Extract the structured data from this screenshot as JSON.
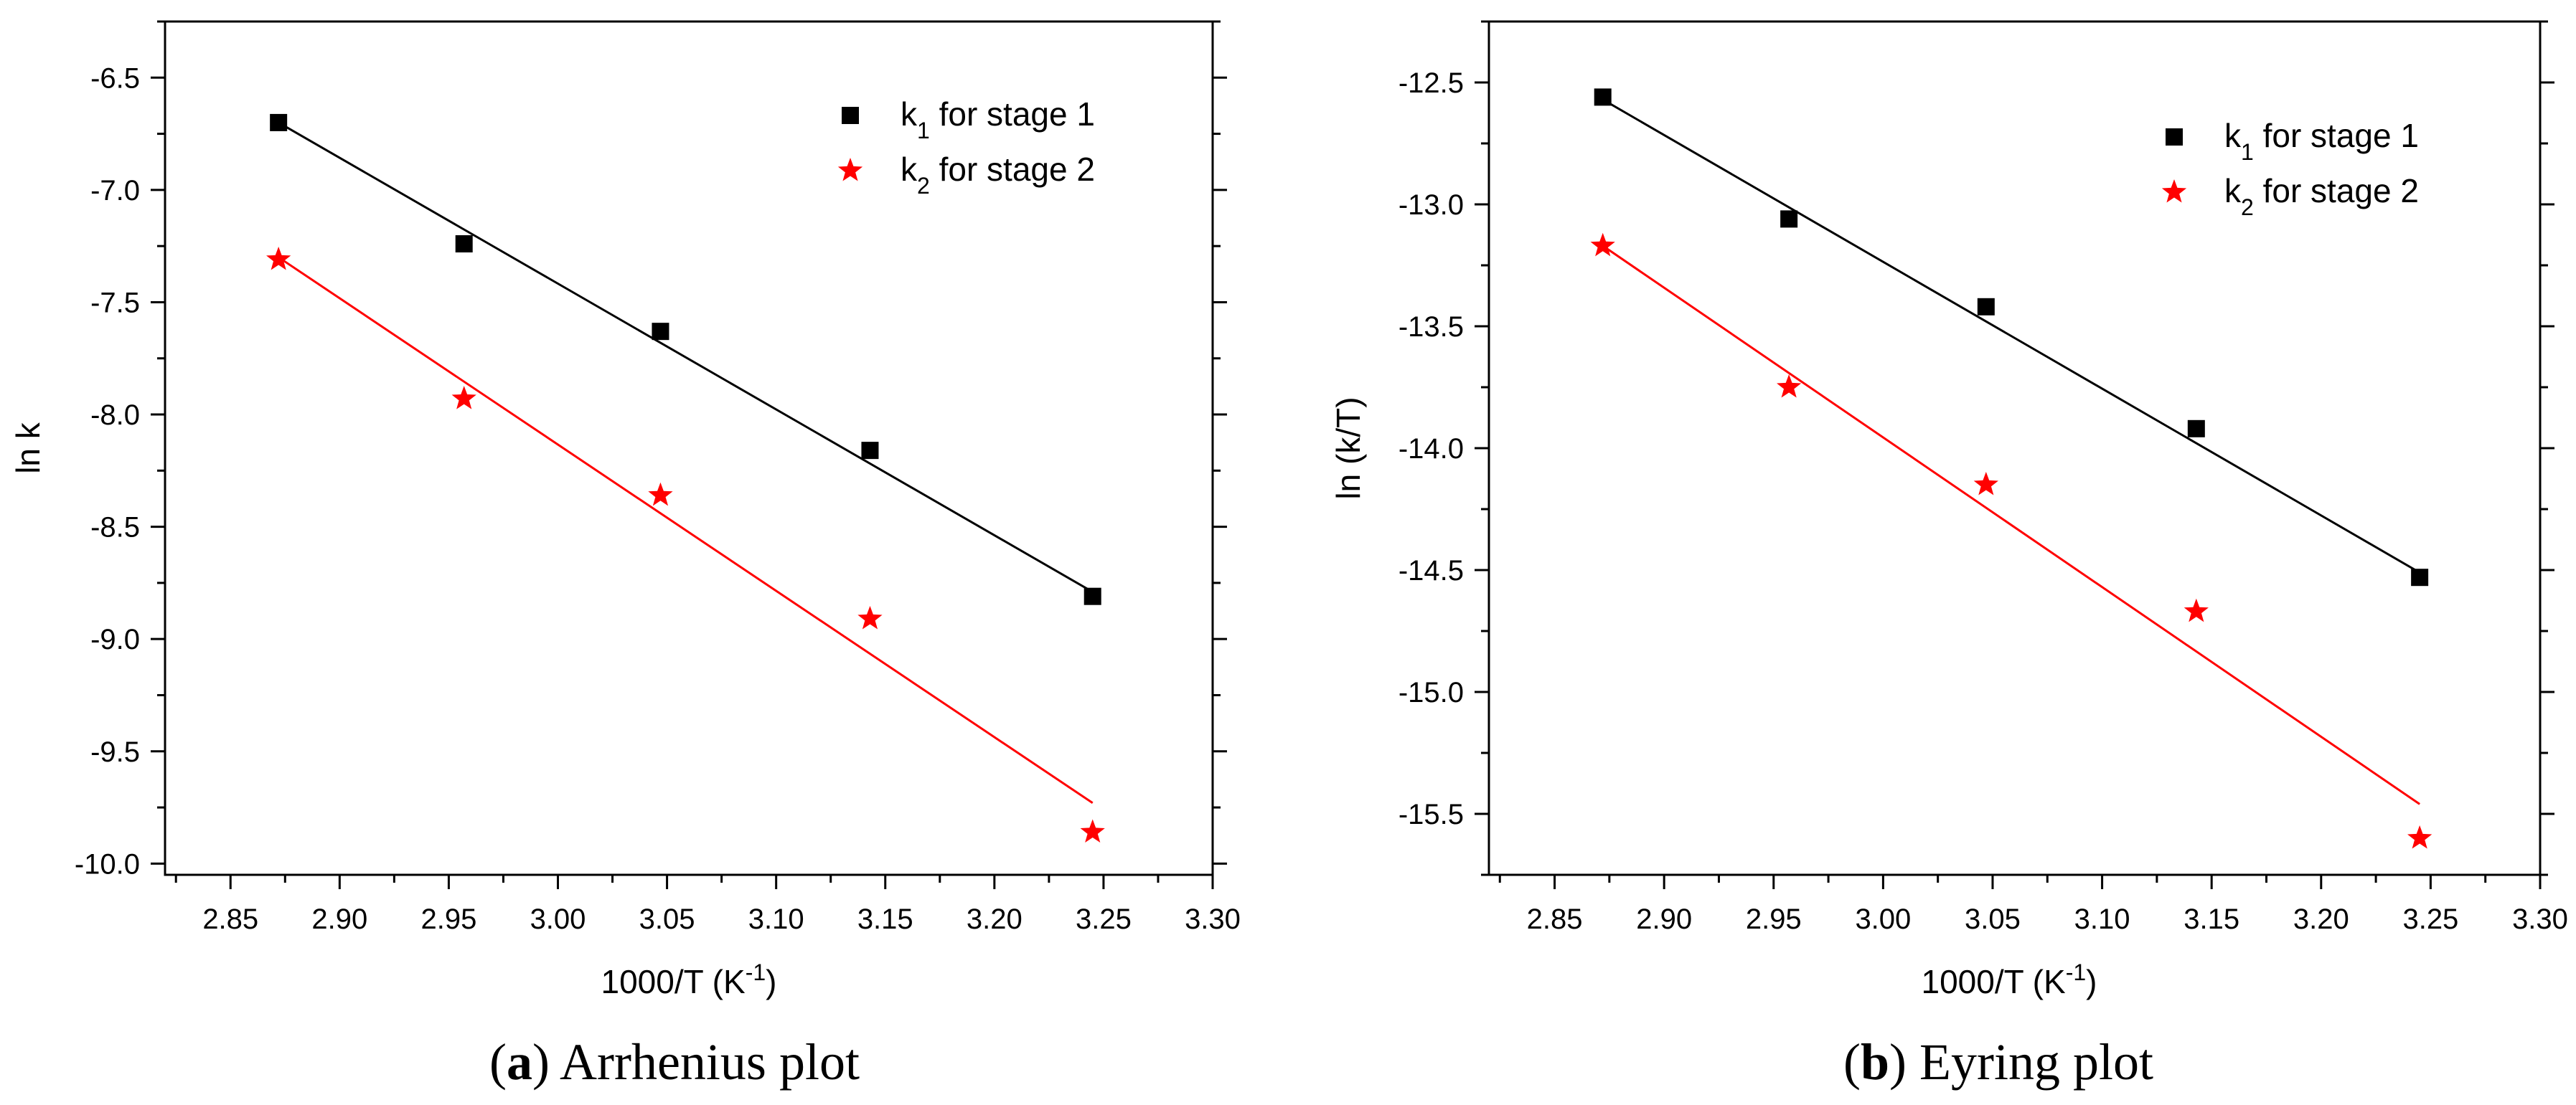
{
  "chart_data": [
    {
      "type": "scatter",
      "title": "",
      "caption_letter": "a",
      "caption_text": "Arrhenius plot",
      "xlabel": "1000/T (K",
      "xlabel_sup": "-1",
      "xlabel_end": ")",
      "ylabel": "ln k",
      "xlim": [
        2.82,
        3.3
      ],
      "ylim": [
        -10.05,
        -6.25
      ],
      "xticks": [
        2.85,
        2.9,
        2.95,
        3.0,
        3.05,
        3.1,
        3.15,
        3.2,
        3.25,
        3.3
      ],
      "xtick_labels": [
        "2.85",
        "2.90",
        "2.95",
        "3.00",
        "3.05",
        "3.10",
        "3.15",
        "3.20",
        "3.25",
        "3.30"
      ],
      "yticks": [
        -6.5,
        -7.0,
        -7.5,
        -8.0,
        -8.5,
        -9.0,
        -9.5,
        -10.0
      ],
      "ytick_labels": [
        "-6.5",
        "-7.0",
        "-7.5",
        "-8.0",
        "-8.5",
        "-9.0",
        "-9.5",
        "-10.0"
      ],
      "legend_position": "top-right",
      "series": [
        {
          "name_base": "k",
          "name_sub": "1",
          "name_rest": " for stage 1",
          "marker": "square",
          "color": "#000000",
          "x": [
            2.872,
            2.957,
            3.047,
            3.143,
            3.245
          ],
          "y": [
            -6.7,
            -7.24,
            -7.63,
            -8.16,
            -8.81
          ],
          "fit": {
            "x": [
              2.872,
              3.245
            ],
            "y": [
              -6.7,
              -8.79
            ]
          }
        },
        {
          "name_base": "k",
          "name_sub": "2",
          "name_rest": " for stage 2",
          "marker": "star",
          "color": "#ff0000",
          "x": [
            2.872,
            2.957,
            3.047,
            3.143,
            3.245
          ],
          "y": [
            -7.31,
            -7.93,
            -8.36,
            -8.91,
            -9.86
          ],
          "fit": {
            "x": [
              2.872,
              3.245
            ],
            "y": [
              -7.3,
              -9.73
            ]
          }
        }
      ]
    },
    {
      "type": "scatter",
      "title": "",
      "caption_letter": "b",
      "caption_text": "Eyring plot",
      "xlabel": "1000/T (K",
      "xlabel_sup": "-1",
      "xlabel_end": ")",
      "ylabel": "ln (k/T)",
      "xlim": [
        2.82,
        3.3
      ],
      "ylim": [
        -15.75,
        -12.25
      ],
      "xticks": [
        2.85,
        2.9,
        2.95,
        3.0,
        3.05,
        3.1,
        3.15,
        3.2,
        3.25,
        3.3
      ],
      "xtick_labels": [
        "2.85",
        "2.90",
        "2.95",
        "3.00",
        "3.05",
        "3.10",
        "3.15",
        "3.20",
        "3.25",
        "3.30"
      ],
      "yticks": [
        -12.5,
        -13.0,
        -13.5,
        -14.0,
        -14.5,
        -15.0,
        -15.5
      ],
      "ytick_labels": [
        "-12.5",
        "-13.0",
        "-13.5",
        "-14.0",
        "-14.5",
        "-15.0",
        "-15.5"
      ],
      "legend_position": "top-right",
      "series": [
        {
          "name_base": "k",
          "name_sub": "1",
          "name_rest": " for stage 1",
          "marker": "square",
          "color": "#000000",
          "x": [
            2.872,
            2.957,
            3.047,
            3.143,
            3.245
          ],
          "y": [
            -12.56,
            -13.06,
            -13.42,
            -13.92,
            -14.53
          ],
          "fit": {
            "x": [
              2.872,
              3.245
            ],
            "y": [
              -12.57,
              -14.51
            ]
          }
        },
        {
          "name_base": "k",
          "name_sub": "2",
          "name_rest": " for stage 2",
          "marker": "star",
          "color": "#ff0000",
          "x": [
            2.872,
            2.957,
            3.047,
            3.143,
            3.245
          ],
          "y": [
            -13.17,
            -13.75,
            -14.15,
            -14.67,
            -15.6
          ],
          "fit": {
            "x": [
              2.872,
              3.245
            ],
            "y": [
              -13.17,
              -15.46
            ]
          }
        }
      ]
    }
  ]
}
